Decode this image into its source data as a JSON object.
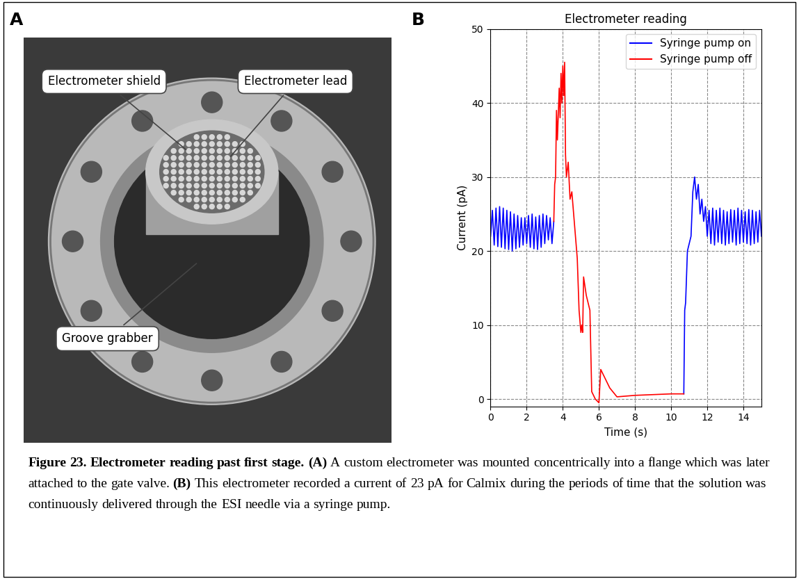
{
  "panel_a": {
    "label": "A",
    "callouts": [
      "Electrometer shield",
      "Electrometer lead",
      "Groove grabber"
    ]
  },
  "panel_b": {
    "label": "B"
  },
  "chart_data": {
    "type": "line",
    "title": "Electrometer reading",
    "x_label": "Time (s)",
    "y_label": "Current (pA)",
    "xlim": [
      0,
      15
    ],
    "xticks": [
      0,
      2,
      4,
      6,
      8,
      10,
      12,
      14
    ],
    "ylim": [
      -1,
      50
    ],
    "yticks": [
      0,
      10,
      20,
      30,
      40,
      50
    ],
    "grid": true,
    "legend": "upper right",
    "series": [
      {
        "name": "Syringe pump on",
        "color": "#0000ff",
        "x": [
          0.0,
          0.1,
          0.2,
          0.3,
          0.4,
          0.5,
          0.6,
          0.7,
          0.8,
          0.9,
          1.0,
          1.1,
          1.2,
          1.3,
          1.4,
          1.5,
          1.6,
          1.7,
          1.8,
          1.9,
          2.0,
          2.1,
          2.2,
          2.3,
          2.4,
          2.5,
          2.6,
          2.7,
          2.8,
          2.9,
          3.0,
          3.1,
          3.2,
          3.3,
          3.4,
          3.5,
          null,
          10.7,
          10.75,
          10.8,
          10.9,
          11.0,
          11.1,
          11.2,
          11.3,
          11.4,
          11.5,
          11.6,
          11.7,
          11.8,
          11.9,
          12.0,
          12.1,
          12.2,
          12.3,
          12.4,
          12.5,
          12.6,
          12.7,
          12.8,
          12.9,
          13.0,
          13.1,
          13.2,
          13.3,
          13.4,
          13.5,
          13.6,
          13.7,
          13.8,
          13.9,
          14.0,
          14.1,
          14.2,
          14.3,
          14.4,
          14.5,
          14.6,
          14.7,
          14.8,
          14.9,
          15.0
        ],
        "values": [
          22,
          25.5,
          20.8,
          25.8,
          20.6,
          26,
          20.5,
          25.8,
          20.3,
          25.5,
          20.2,
          25.3,
          20,
          25,
          20.3,
          24.8,
          20.5,
          24.5,
          20.8,
          24.5,
          21,
          24.8,
          20.5,
          25,
          20.3,
          24.6,
          20.2,
          24.8,
          20.5,
          25,
          21,
          24.8,
          21.5,
          24.5,
          21,
          24,
          null,
          0.7,
          12,
          13,
          20,
          21,
          22,
          28,
          30,
          27,
          29,
          25,
          27,
          24,
          26,
          22,
          25.5,
          21,
          25.8,
          20.8,
          25.5,
          21.2,
          25.8,
          21,
          25.5,
          20.8,
          25.3,
          21,
          25.6,
          21.2,
          25.5,
          20.8,
          25.8,
          21,
          25.5,
          21.2,
          25.3,
          21,
          25.6,
          20.8,
          25.5,
          21,
          25.3,
          21.2,
          25.5,
          22
        ]
      },
      {
        "name": "Syringe pump off",
        "color": "#ff0000",
        "x": [
          3.5,
          3.55,
          3.6,
          3.65,
          3.7,
          3.8,
          3.85,
          3.9,
          3.95,
          4.0,
          4.05,
          4.1,
          4.15,
          4.2,
          4.3,
          4.4,
          4.5,
          4.6,
          4.7,
          4.8,
          4.9,
          5.0,
          5.05,
          5.1,
          5.15,
          5.3,
          5.5,
          5.6,
          5.8,
          6.0,
          6.1,
          6.3,
          6.6,
          7.0,
          7.5,
          8.0,
          9.0,
          10.0,
          10.7
        ],
        "values": [
          24,
          29,
          30,
          39,
          35,
          42,
          38,
          44,
          40,
          45,
          41,
          45.5,
          33,
          30,
          32,
          27,
          28,
          25,
          22,
          19,
          12,
          9,
          10,
          9,
          16.5,
          14,
          12,
          1,
          0,
          -0.5,
          4,
          3,
          1.5,
          0.3,
          0.4,
          0.5,
          0.6,
          0.7,
          0.7
        ]
      }
    ]
  },
  "caption": {
    "title": "Figure 23. Electrometer reading past first stage.",
    "parts": [
      {
        "label": "(A)",
        "text": "A custom electrometer was mounted concentrically into a flange which was later attached to the gate valve."
      },
      {
        "label": "(B)",
        "text": "This electrometer recorded a current of 23 pA for Calmix during the periods of time that the solution was continuously delivered through the ESI needle via a syringe pump."
      }
    ]
  }
}
